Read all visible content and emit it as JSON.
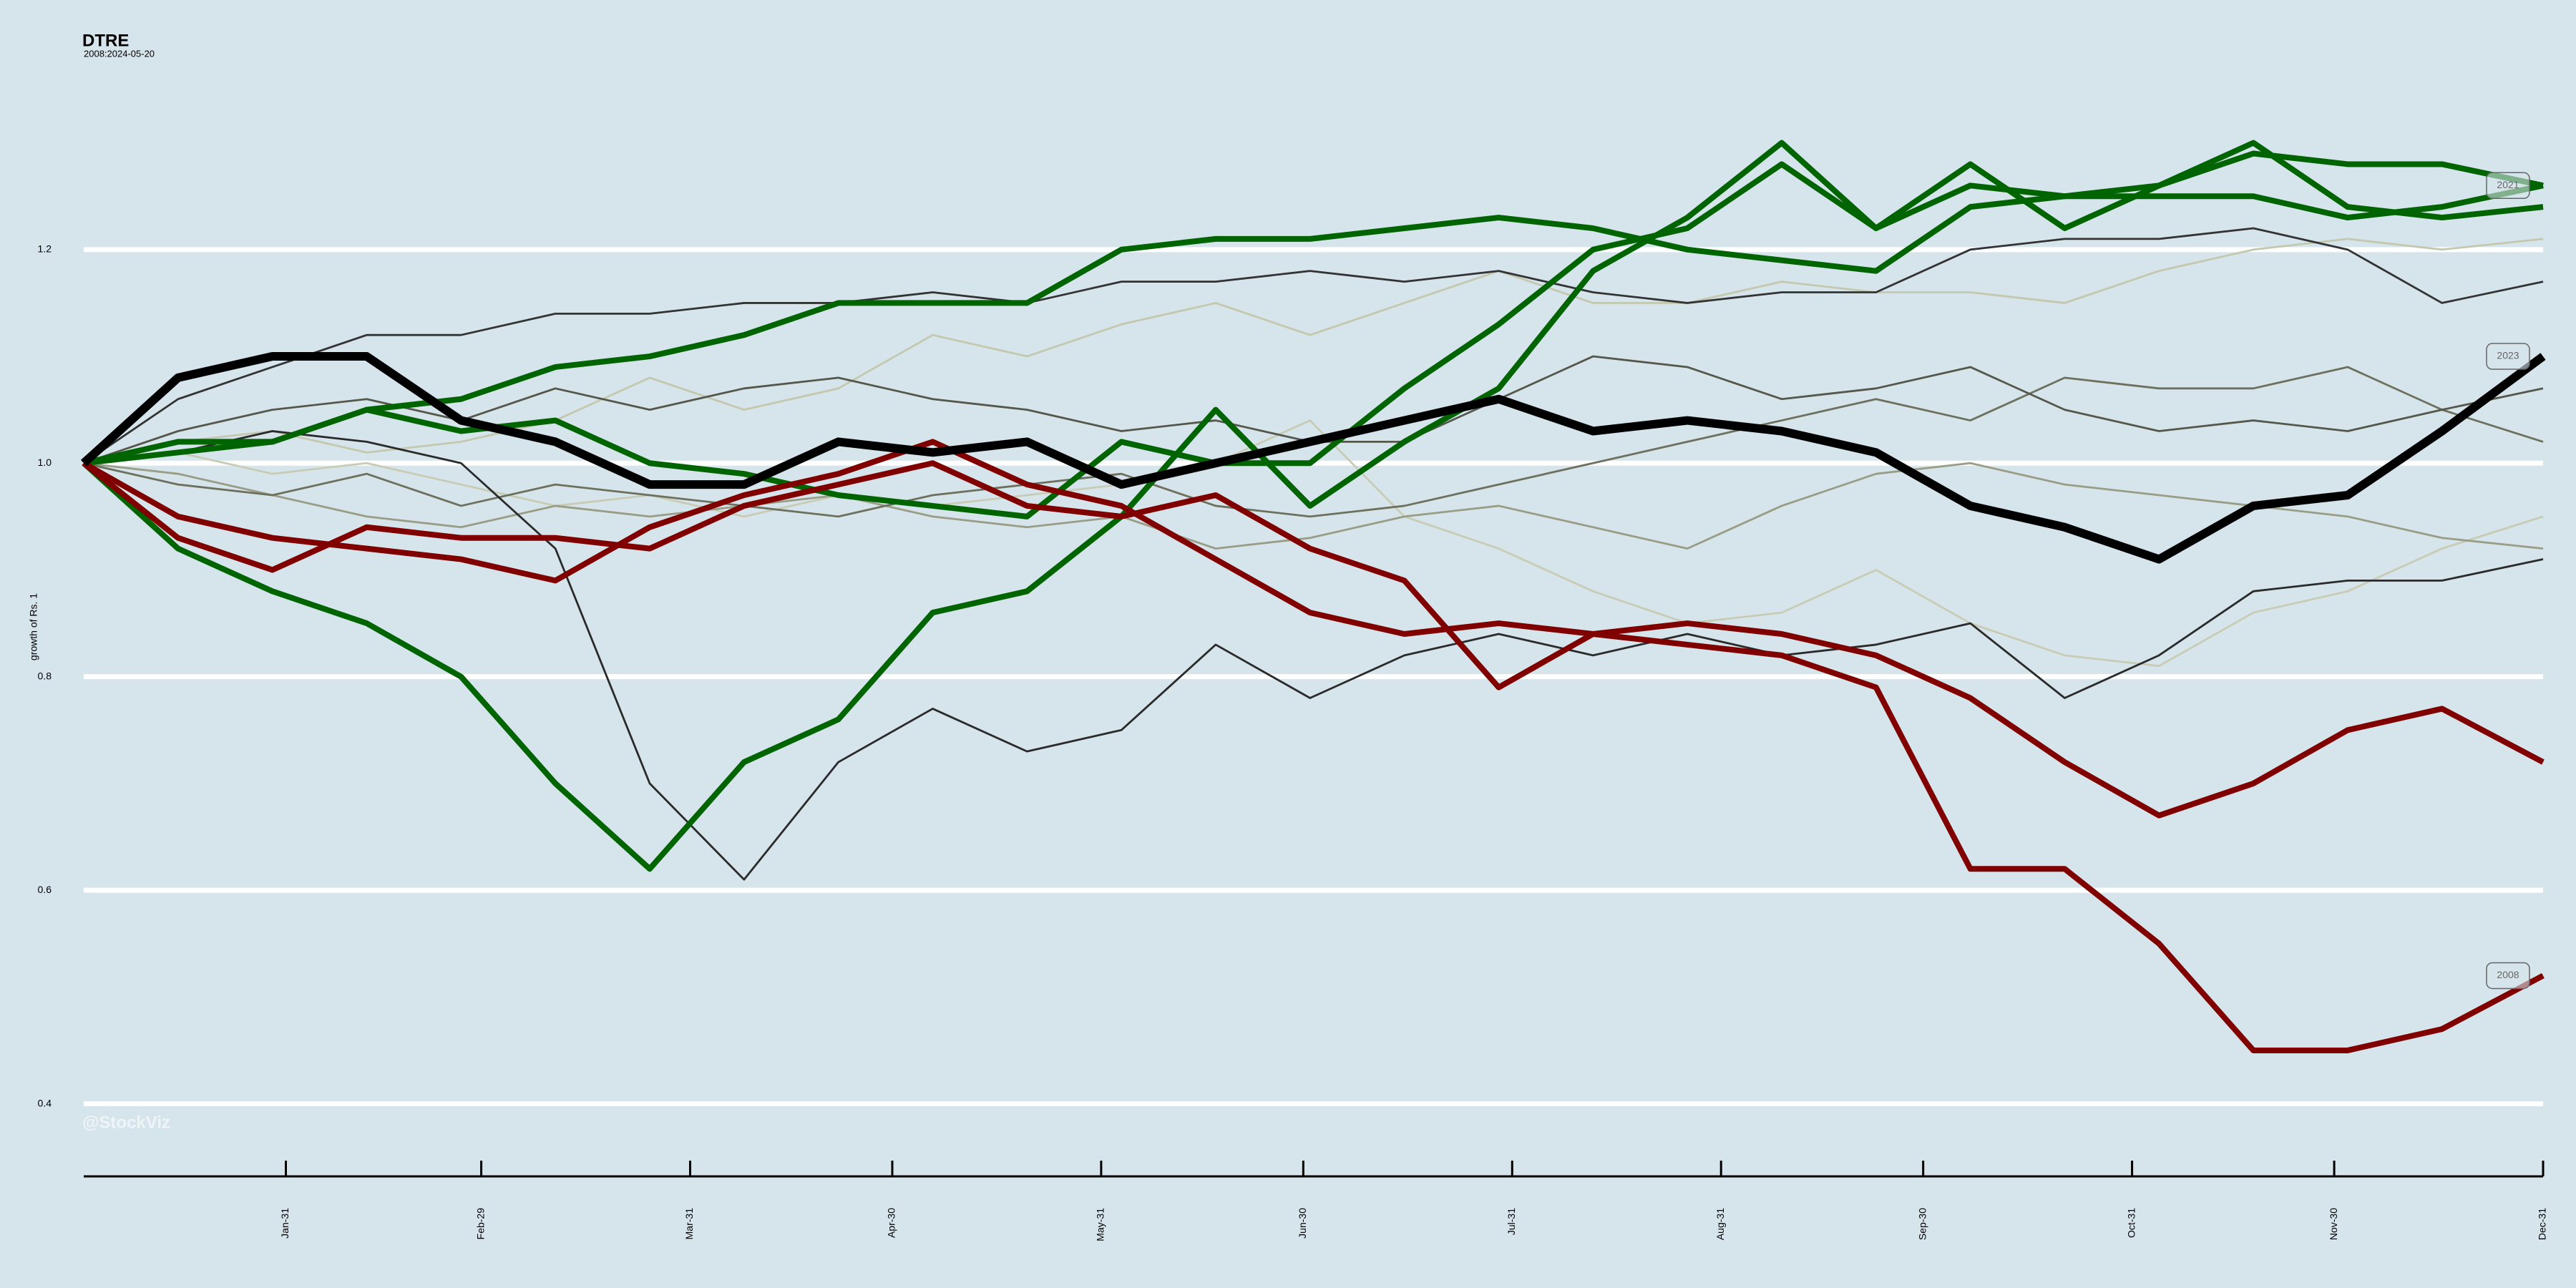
{
  "chart_data": {
    "type": "line",
    "title": "DTRE",
    "subtitle": "2008:2024-05-20",
    "y_label": "growth of Rs. 1",
    "watermark": "@StockViz",
    "x": [
      1,
      15,
      29,
      43,
      57,
      71,
      85,
      99,
      113,
      127,
      141,
      155,
      169,
      183,
      197,
      211,
      225,
      239,
      253,
      267,
      281,
      295,
      309,
      323,
      337,
      351,
      366
    ],
    "xlim": [
      1,
      366
    ],
    "xticks": [
      {
        "value": 31,
        "label": "Jan-31"
      },
      {
        "value": 60,
        "label": "Feb-29"
      },
      {
        "value": 91,
        "label": "Mar-31"
      },
      {
        "value": 121,
        "label": "Apr-30"
      },
      {
        "value": 152,
        "label": "May-31"
      },
      {
        "value": 182,
        "label": "Jun-30"
      },
      {
        "value": 213,
        "label": "Jul-31"
      },
      {
        "value": 244,
        "label": "Aug-31"
      },
      {
        "value": 274,
        "label": "Sep-30"
      },
      {
        "value": 305,
        "label": "Oct-31"
      },
      {
        "value": 335,
        "label": "Nov-30"
      },
      {
        "value": 366,
        "label": "Dec-31"
      }
    ],
    "ylim": [
      0.33,
      1.35
    ],
    "yticks": [
      0.4,
      0.6,
      0.8,
      {
        "value": 1,
        "label": "1.0"
      },
      1.2
    ],
    "grid": true,
    "series": [
      {
        "color": "#c4c8ae",
        "values": [
          1.0,
          1.02,
          1.03,
          1.01,
          1.02,
          1.04,
          1.08,
          1.05,
          1.07,
          1.12,
          1.1,
          1.13,
          1.15,
          1.12,
          1.15,
          1.18,
          1.15,
          1.15,
          1.17,
          1.16,
          1.16,
          1.15,
          1.18,
          1.2,
          1.21,
          1.2,
          1.21
        ]
      },
      {
        "color": "#c9ccb4",
        "values": [
          1.0,
          1.01,
          0.99,
          1.0,
          0.98,
          0.96,
          0.97,
          0.95,
          0.97,
          0.96,
          0.97,
          0.98,
          1.0,
          1.04,
          0.95,
          0.92,
          0.88,
          0.85,
          0.86,
          0.9,
          0.85,
          0.82,
          0.81,
          0.86,
          0.88,
          0.92,
          0.95
        ]
      },
      {
        "color": "#9a9d86",
        "values": [
          1.0,
          0.99,
          0.97,
          0.95,
          0.94,
          0.96,
          0.95,
          0.96,
          0.97,
          0.95,
          0.94,
          0.95,
          0.92,
          0.93,
          0.95,
          0.96,
          0.94,
          0.92,
          0.96,
          0.99,
          1.0,
          0.98,
          0.97,
          0.96,
          0.95,
          0.93,
          0.92
        ]
      },
      {
        "color": "#6e705e",
        "values": [
          1.0,
          0.98,
          0.97,
          0.99,
          0.96,
          0.98,
          0.97,
          0.96,
          0.95,
          0.97,
          0.98,
          0.99,
          0.96,
          0.95,
          0.96,
          0.98,
          1.0,
          1.02,
          1.04,
          1.06,
          1.04,
          1.08,
          1.07,
          1.07,
          1.09,
          1.05,
          1.02
        ]
      },
      {
        "color": "#55574a",
        "values": [
          1.0,
          1.03,
          1.05,
          1.06,
          1.04,
          1.07,
          1.05,
          1.07,
          1.08,
          1.06,
          1.05,
          1.03,
          1.04,
          1.02,
          1.02,
          1.06,
          1.1,
          1.09,
          1.06,
          1.07,
          1.09,
          1.05,
          1.03,
          1.04,
          1.03,
          1.05,
          1.07
        ]
      },
      {
        "color": "#333333",
        "values": [
          1.0,
          1.06,
          1.09,
          1.12,
          1.12,
          1.14,
          1.14,
          1.15,
          1.15,
          1.16,
          1.15,
          1.17,
          1.17,
          1.18,
          1.17,
          1.18,
          1.16,
          1.15,
          1.16,
          1.16,
          1.2,
          1.21,
          1.21,
          1.22,
          1.2,
          1.15,
          1.17
        ]
      },
      {
        "color": "#2a2a2a",
        "values": [
          1.0,
          1.01,
          1.03,
          1.02,
          1.0,
          0.92,
          0.7,
          0.61,
          0.72,
          0.77,
          0.73,
          0.75,
          0.83,
          0.78,
          0.82,
          0.84,
          0.82,
          0.84,
          0.82,
          0.83,
          0.85,
          0.78,
          0.82,
          0.88,
          0.89,
          0.89,
          0.91
        ]
      },
      {
        "color": "#006400",
        "values": [
          1.0,
          1.01,
          1.02,
          1.05,
          1.06,
          1.09,
          1.1,
          1.12,
          1.15,
          1.15,
          1.15,
          1.2,
          1.21,
          1.21,
          1.22,
          1.23,
          1.22,
          1.2,
          1.19,
          1.18,
          1.24,
          1.25,
          1.25,
          1.25,
          1.23,
          1.24,
          1.26
        ]
      },
      {
        "color": "#006400",
        "values": [
          1.0,
          1.02,
          1.02,
          1.05,
          1.03,
          1.04,
          1.0,
          0.99,
          0.97,
          0.96,
          0.95,
          1.02,
          1.0,
          1.0,
          1.07,
          1.13,
          1.2,
          1.22,
          1.28,
          1.22,
          1.28,
          1.22,
          1.26,
          1.3,
          1.24,
          1.23,
          1.24
        ]
      },
      {
        "name": "2021",
        "color": "#006400",
        "values": [
          1.0,
          0.92,
          0.88,
          0.85,
          0.8,
          0.7,
          0.62,
          0.72,
          0.76,
          0.86,
          0.88,
          0.95,
          1.05,
          0.96,
          1.02,
          1.07,
          1.18,
          1.23,
          1.3,
          1.22,
          1.26,
          1.25,
          1.26,
          1.29,
          1.28,
          1.28,
          1.26
        ]
      },
      {
        "color": "#800000",
        "values": [
          1.0,
          0.93,
          0.9,
          0.94,
          0.93,
          0.93,
          0.92,
          0.96,
          0.98,
          1.0,
          0.96,
          0.95,
          0.97,
          0.92,
          0.89,
          0.79,
          0.84,
          0.85,
          0.84,
          0.82,
          0.78,
          0.72,
          0.67,
          0.7,
          0.75,
          0.77,
          0.72
        ]
      },
      {
        "name": "2008",
        "color": "#800000",
        "values": [
          1.0,
          0.95,
          0.93,
          0.92,
          0.91,
          0.89,
          0.94,
          0.97,
          0.99,
          1.02,
          0.98,
          0.96,
          0.91,
          0.86,
          0.84,
          0.85,
          0.84,
          0.83,
          0.82,
          0.79,
          0.62,
          0.62,
          0.55,
          0.45,
          0.45,
          0.47,
          0.52
        ]
      },
      {
        "name": "2023",
        "color": "#000000",
        "values": [
          1.0,
          1.08,
          1.1,
          1.1,
          1.04,
          1.02,
          0.98,
          0.98,
          1.02,
          1.01,
          1.02,
          0.98,
          1.0,
          1.02,
          1.04,
          1.06,
          1.03,
          1.04,
          1.03,
          1.01,
          0.96,
          0.94,
          0.91,
          0.96,
          0.97,
          1.03,
          1.1
        ]
      }
    ]
  }
}
